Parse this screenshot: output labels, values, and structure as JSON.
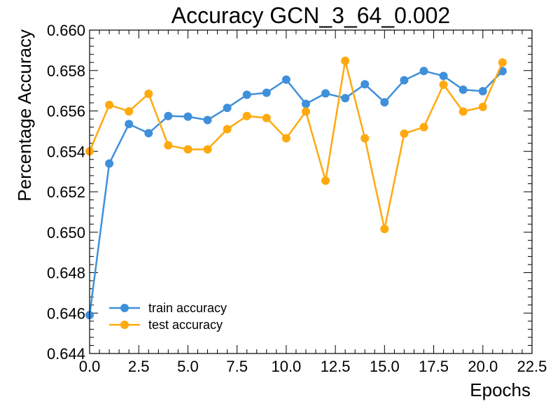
{
  "chart_data": {
    "type": "line",
    "title": "Accuracy GCN_3_64_0.002",
    "xlabel": "Epochs",
    "ylabel": "Percentage Accuracy",
    "xlim": [
      0,
      22.5
    ],
    "ylim": [
      0.644,
      0.66
    ],
    "x_ticks": [
      0,
      2.5,
      5,
      7.5,
      10,
      12.5,
      15,
      17.5,
      20,
      22.5
    ],
    "x_tick_labels": [
      "0.0",
      "2.5",
      "5.0",
      "7.5",
      "10.0",
      "12.5",
      "15.0",
      "17.5",
      "20.0",
      "22.5"
    ],
    "y_ticks": [
      0.644,
      0.646,
      0.648,
      0.65,
      0.652,
      0.654,
      0.656,
      0.658,
      0.66
    ],
    "y_tick_labels": [
      "0.644",
      "0.646",
      "0.648",
      "0.650",
      "0.652",
      "0.654",
      "0.656",
      "0.658",
      "0.660"
    ],
    "legend_position": "lower-left",
    "grid": false,
    "x": [
      0,
      1,
      2,
      3,
      4,
      5,
      6,
      7,
      8,
      9,
      10,
      11,
      12,
      13,
      14,
      15,
      16,
      17,
      18,
      19,
      20,
      21
    ],
    "series": [
      {
        "name": "train accuracy",
        "color": "#3f90da",
        "values": [
          0.6459,
          0.6534,
          0.65535,
          0.6549,
          0.65575,
          0.65572,
          0.65555,
          0.65615,
          0.6568,
          0.6569,
          0.65755,
          0.65635,
          0.65687,
          0.65663,
          0.65732,
          0.65643,
          0.65752,
          0.65798,
          0.65773,
          0.65705,
          0.65698,
          0.65797
        ]
      },
      {
        "name": "test accuracy",
        "color": "#ffa90e",
        "values": [
          0.654,
          0.6563,
          0.65598,
          0.65685,
          0.6543,
          0.6541,
          0.6541,
          0.6551,
          0.65575,
          0.65565,
          0.65465,
          0.65597,
          0.65255,
          0.65848,
          0.65465,
          0.65016,
          0.65488,
          0.6552,
          0.6573,
          0.65597,
          0.6562,
          0.6584
        ]
      }
    ]
  }
}
